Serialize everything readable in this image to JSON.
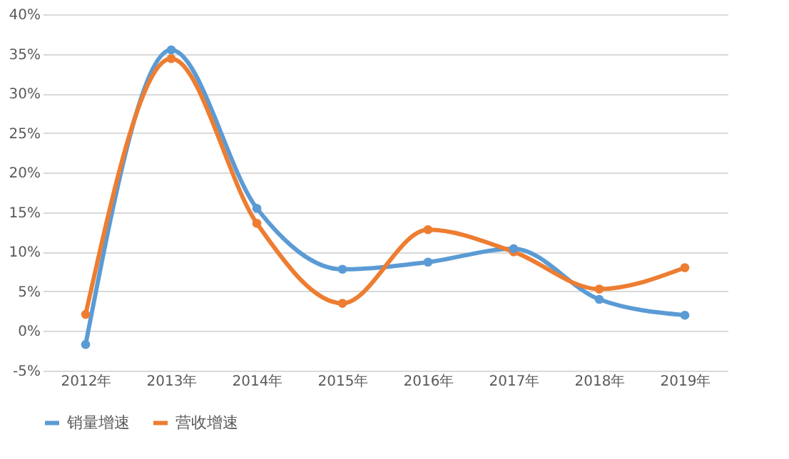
{
  "chart_data": {
    "type": "line",
    "categories": [
      "2012年",
      "2013年",
      "2014年",
      "2015年",
      "2016年",
      "2017年",
      "2018年",
      "2019年"
    ],
    "series": [
      {
        "name": "销量增速",
        "color": "#5b9bd5",
        "values": [
          -1.7,
          35.5,
          15.5,
          7.8,
          8.7,
          10.4,
          4.0,
          2.0
        ]
      },
      {
        "name": "营收增速",
        "color": "#ed7d31",
        "values": [
          2.1,
          34.4,
          13.6,
          3.5,
          12.8,
          10.0,
          5.3,
          8.0
        ]
      }
    ],
    "ylim": [
      -5,
      40
    ],
    "yticks": [
      {
        "value": -5,
        "label": "-5%"
      },
      {
        "value": 0,
        "label": "0%"
      },
      {
        "value": 5,
        "label": "5%"
      },
      {
        "value": 10,
        "label": "10%"
      },
      {
        "value": 15,
        "label": "15%"
      },
      {
        "value": 20,
        "label": "20%"
      },
      {
        "value": 25,
        "label": "25%"
      },
      {
        "value": 30,
        "label": "30%"
      },
      {
        "value": 35,
        "label": "35%"
      },
      {
        "value": 40,
        "label": "40%"
      }
    ],
    "grid": "y",
    "legend": "bottom",
    "marker": "circle",
    "line_style": "solid"
  }
}
